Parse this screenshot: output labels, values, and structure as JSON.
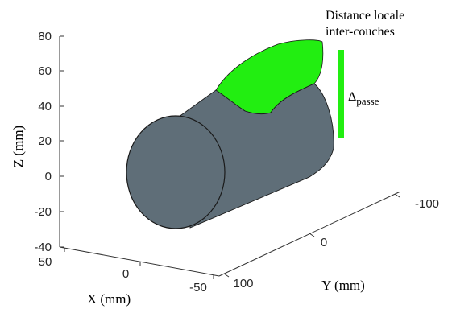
{
  "figure": {
    "z_axis": {
      "label": "Z (mm)",
      "ticks": [
        "80",
        "60",
        "40",
        "20",
        "0",
        "-20",
        "-40"
      ]
    },
    "x_axis": {
      "label": "X (mm)",
      "ticks": [
        "50",
        "0",
        "-50"
      ]
    },
    "y_axis": {
      "label": "Y (mm)",
      "ticks": [
        "100",
        "0",
        "-100"
      ]
    },
    "annotation": {
      "line1": "Distance locale",
      "line2": "inter-couches",
      "delta_symbol": "Δ",
      "delta_subscript": "passe"
    },
    "colors": {
      "cylinder": "#5f6e78",
      "deposit": "#22ee11",
      "outline": "#1a1a1a"
    }
  }
}
